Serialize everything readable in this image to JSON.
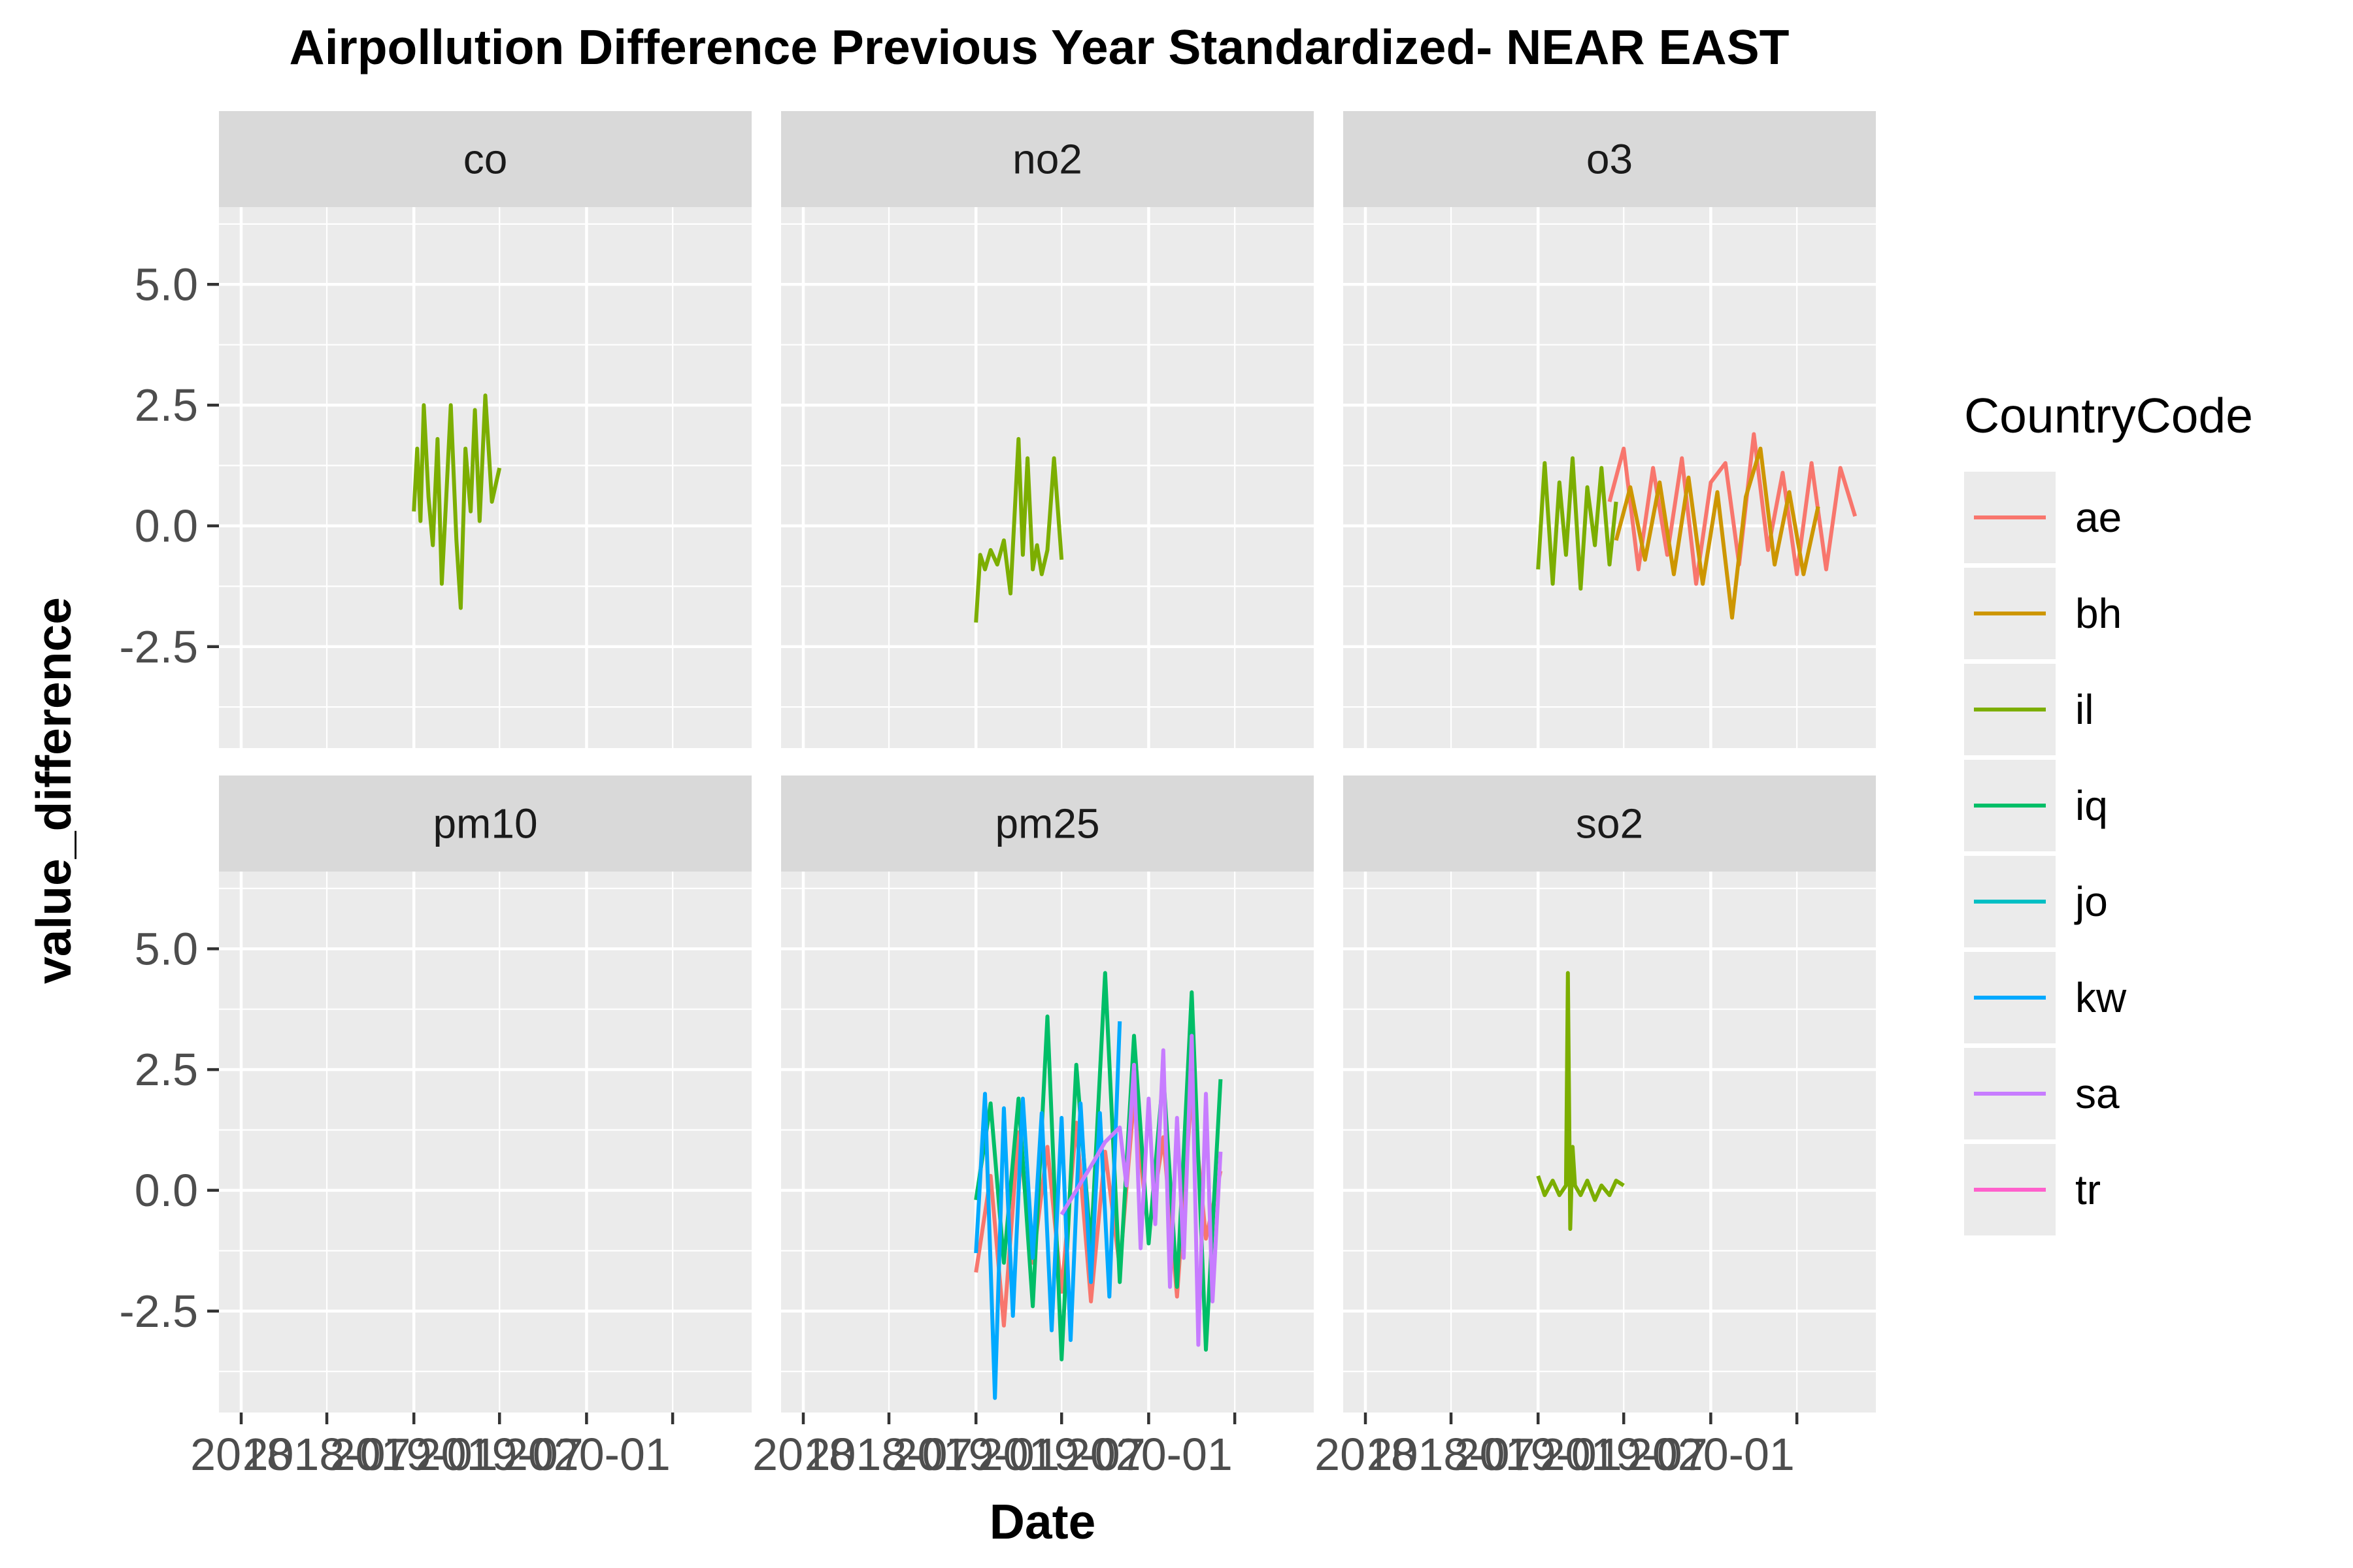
{
  "chart_data": {
    "type": "line",
    "title": "Airpollution Difference Previous Year Standardized- NEAR EAST",
    "xlabel": "Date",
    "ylabel": "value_difference",
    "legend": {
      "title": "CountryCode",
      "placement": "right",
      "entries": [
        {
          "code": "ae",
          "color": "#F8766D"
        },
        {
          "code": "bh",
          "color": "#CD9600"
        },
        {
          "code": "il",
          "color": "#7CAE00"
        },
        {
          "code": "iq",
          "color": "#00BE67"
        },
        {
          "code": "jo",
          "color": "#00BFC4"
        },
        {
          "code": "kw",
          "color": "#00A9FF"
        },
        {
          "code": "sa",
          "color": "#C77CFF"
        },
        {
          "code": "tr",
          "color": "#FF61CC"
        }
      ]
    },
    "x_axis": {
      "type": "date",
      "range": [
        "2017-11-15",
        "2020-12-15"
      ],
      "major_ticks": [
        "2018-01-01",
        "2019-01-01",
        "2020-01-01"
      ],
      "tick_labels_row": [
        "2018",
        "2018-07",
        "2019-01",
        "2019-07",
        "2020-01"
      ],
      "grid_lines": [
        "2018-01-01",
        "2018-07-01",
        "2019-01-01",
        "2019-07-01",
        "2020-01-01",
        "2020-07-01"
      ]
    },
    "y_axis": {
      "range": [
        -4.6,
        6.6
      ],
      "ticks": [
        5.0,
        2.5,
        0.0,
        -2.5
      ],
      "tick_labels": [
        "5.0",
        "2.5",
        "0.0",
        "-2.5"
      ],
      "minor_ticks": [
        -3.75,
        -1.25,
        1.25,
        3.75,
        6.25
      ]
    },
    "grid": true,
    "facets": [
      {
        "name": "co",
        "series": [
          {
            "country": "il",
            "x": [
              "2019-01-01",
              "2019-01-08",
              "2019-01-15",
              "2019-01-22",
              "2019-02-01",
              "2019-02-10",
              "2019-02-20",
              "2019-03-01",
              "2019-03-10",
              "2019-03-20",
              "2019-04-01",
              "2019-04-10",
              "2019-04-20",
              "2019-05-01",
              "2019-05-10",
              "2019-05-20",
              "2019-06-01",
              "2019-06-15",
              "2019-07-01"
            ],
            "values": [
              0.3,
              1.6,
              0.1,
              2.5,
              0.6,
              -0.4,
              1.8,
              -1.2,
              0.5,
              2.5,
              -0.3,
              -1.7,
              1.6,
              0.3,
              2.4,
              0.1,
              2.7,
              0.5,
              1.2
            ]
          }
        ]
      },
      {
        "name": "no2",
        "series": [
          {
            "country": "il",
            "x": [
              "2019-01-01",
              "2019-01-10",
              "2019-01-20",
              "2019-02-01",
              "2019-02-15",
              "2019-03-01",
              "2019-03-15",
              "2019-04-01",
              "2019-04-10",
              "2019-04-20",
              "2019-05-01",
              "2019-05-10",
              "2019-05-20",
              "2019-06-01",
              "2019-06-15",
              "2019-07-01"
            ],
            "values": [
              -2.0,
              -0.6,
              -0.9,
              -0.5,
              -0.8,
              -0.3,
              -1.4,
              1.8,
              -0.6,
              1.4,
              -0.9,
              -0.4,
              -1.0,
              -0.5,
              1.4,
              -0.7
            ]
          }
        ]
      },
      {
        "name": "o3",
        "series": [
          {
            "country": "il",
            "x": [
              "2019-01-01",
              "2019-01-15",
              "2019-02-01",
              "2019-02-15",
              "2019-03-01",
              "2019-03-15",
              "2019-04-01",
              "2019-04-15",
              "2019-05-01",
              "2019-05-15",
              "2019-06-01",
              "2019-06-15"
            ],
            "values": [
              -0.9,
              1.3,
              -1.2,
              0.9,
              -0.6,
              1.4,
              -1.3,
              0.8,
              -0.4,
              1.2,
              -0.8,
              0.5
            ]
          },
          {
            "country": "ae",
            "x": [
              "2019-06-01",
              "2019-07-01",
              "2019-08-01",
              "2019-09-01",
              "2019-10-01",
              "2019-11-01",
              "2019-12-01",
              "2020-01-01",
              "2020-02-01",
              "2020-03-01",
              "2020-04-01",
              "2020-05-01",
              "2020-06-01",
              "2020-07-01",
              "2020-08-01",
              "2020-09-01",
              "2020-10-01",
              "2020-11-01"
            ],
            "values": [
              0.5,
              1.6,
              -0.9,
              1.2,
              -0.6,
              1.4,
              -1.2,
              0.9,
              1.3,
              -0.8,
              1.9,
              -0.5,
              1.1,
              -1.0,
              1.3,
              -0.9,
              1.2,
              0.2
            ]
          },
          {
            "country": "bh",
            "x": [
              "2019-06-15",
              "2019-07-15",
              "2019-08-15",
              "2019-09-15",
              "2019-10-15",
              "2019-11-15",
              "2019-12-15",
              "2020-01-15",
              "2020-02-15",
              "2020-03-15",
              "2020-04-15",
              "2020-05-15",
              "2020-06-15",
              "2020-07-15",
              "2020-08-15"
            ],
            "values": [
              -0.3,
              0.8,
              -0.7,
              0.9,
              -1.0,
              1.0,
              -1.2,
              0.7,
              -1.9,
              0.6,
              1.6,
              -0.8,
              0.7,
              -1.0,
              0.4
            ]
          }
        ]
      },
      {
        "name": "pm10",
        "series": []
      },
      {
        "name": "pm25",
        "series": [
          {
            "country": "ae",
            "x": [
              "2019-01-01",
              "2019-02-01",
              "2019-03-01",
              "2019-04-01",
              "2019-05-01",
              "2019-06-01",
              "2019-07-01",
              "2019-08-01",
              "2019-09-01",
              "2019-10-01",
              "2019-11-01",
              "2019-12-01",
              "2020-01-01",
              "2020-02-01",
              "2020-03-01",
              "2020-04-01",
              "2020-05-01",
              "2020-06-01"
            ],
            "values": [
              -1.7,
              0.3,
              -2.8,
              1.2,
              -1.5,
              0.9,
              -2.1,
              1.4,
              -2.3,
              0.8,
              -1.6,
              1.9,
              -0.9,
              1.1,
              -2.2,
              2.1,
              -1.0,
              0.4
            ]
          },
          {
            "country": "iq",
            "x": [
              "2019-01-01",
              "2019-02-01",
              "2019-03-01",
              "2019-04-01",
              "2019-05-01",
              "2019-06-01",
              "2019-07-01",
              "2019-08-01",
              "2019-09-01",
              "2019-10-01",
              "2019-11-01",
              "2019-12-01",
              "2020-01-01",
              "2020-02-01",
              "2020-03-01",
              "2020-04-01",
              "2020-05-01",
              "2020-06-01"
            ],
            "values": [
              -0.2,
              1.8,
              -1.5,
              1.9,
              -2.4,
              3.6,
              -3.5,
              2.6,
              -1.2,
              4.5,
              -1.9,
              3.2,
              -1.1,
              2.4,
              -2.0,
              4.1,
              -3.3,
              2.3
            ]
          },
          {
            "country": "kw",
            "x": [
              "2019-01-01",
              "2019-01-20",
              "2019-02-10",
              "2019-03-01",
              "2019-03-20",
              "2019-04-10",
              "2019-05-01",
              "2019-05-20",
              "2019-06-10",
              "2019-07-01",
              "2019-07-20",
              "2019-08-10",
              "2019-09-01",
              "2019-09-20",
              "2019-10-10",
              "2019-11-01"
            ],
            "values": [
              -1.3,
              2.0,
              -4.3,
              1.7,
              -2.6,
              1.9,
              -1.4,
              1.6,
              -2.9,
              1.5,
              -3.1,
              1.8,
              -1.9,
              1.6,
              -2.2,
              3.5
            ]
          },
          {
            "country": "sa",
            "x": [
              "2019-07-01",
              "2019-08-01",
              "2019-09-01",
              "2019-10-01",
              "2019-11-01",
              "2019-11-15",
              "2019-12-01",
              "2019-12-15",
              "2020-01-01",
              "2020-01-15",
              "2020-02-01",
              "2020-02-15",
              "2020-03-01",
              "2020-03-15",
              "2020-04-01",
              "2020-04-15",
              "2020-05-01",
              "2020-05-15",
              "2020-06-01"
            ],
            "values": [
              -0.5,
              0.0,
              0.5,
              1.0,
              1.3,
              0.1,
              2.6,
              -1.2,
              1.9,
              -0.7,
              2.9,
              -2.0,
              1.5,
              -1.4,
              3.2,
              -3.2,
              2.0,
              -2.3,
              0.8
            ]
          }
        ]
      },
      {
        "name": "so2",
        "series": [
          {
            "country": "il",
            "x": [
              "2019-01-01",
              "2019-01-15",
              "2019-02-01",
              "2019-02-15",
              "2019-03-01",
              "2019-03-05",
              "2019-03-10",
              "2019-03-15",
              "2019-03-20",
              "2019-04-01",
              "2019-04-15",
              "2019-05-01",
              "2019-05-15",
              "2019-06-01",
              "2019-06-15",
              "2019-07-01"
            ],
            "values": [
              0.3,
              -0.1,
              0.2,
              -0.1,
              0.1,
              4.5,
              -0.8,
              0.9,
              0.1,
              -0.1,
              0.2,
              -0.2,
              0.1,
              -0.1,
              0.2,
              0.1
            ]
          }
        ]
      }
    ]
  }
}
